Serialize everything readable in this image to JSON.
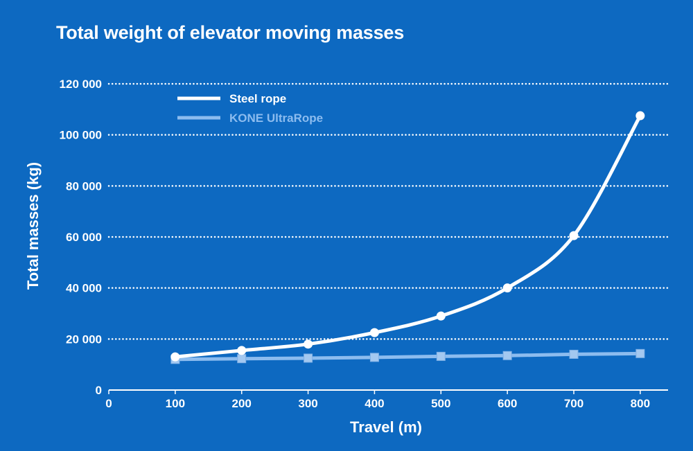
{
  "chart_data": {
    "type": "line",
    "title": "Total weight of elevator moving masses",
    "xlabel": "Travel (m)",
    "ylabel": "Total masses (kg)",
    "x": [
      100,
      200,
      300,
      400,
      500,
      600,
      700,
      800
    ],
    "x_ticks": [
      0,
      100,
      200,
      300,
      400,
      500,
      600,
      700,
      800
    ],
    "x_tick_labels": [
      "0",
      "100",
      "200",
      "300",
      "400",
      "500",
      "600",
      "700",
      "800"
    ],
    "xlim": [
      0,
      850
    ],
    "y_ticks": [
      0,
      20000,
      40000,
      60000,
      80000,
      100000,
      120000
    ],
    "y_tick_labels": [
      "0",
      "20 000",
      "40 000",
      "60 000",
      "80 000",
      "100 000",
      "120 000"
    ],
    "ylim": [
      0,
      120000
    ],
    "grid": true,
    "legend_position": "top-left",
    "series": [
      {
        "name": "Steel rope",
        "color": "#ffffff",
        "marker": "circle",
        "values": [
          13000,
          15500,
          18000,
          22500,
          29000,
          40000,
          60500,
          107500
        ]
      },
      {
        "name": "KONE UltraRope",
        "color": "#8cbcef",
        "marker": "square",
        "values": [
          12000,
          12300,
          12500,
          12800,
          13200,
          13500,
          14000,
          14300
        ]
      }
    ]
  }
}
